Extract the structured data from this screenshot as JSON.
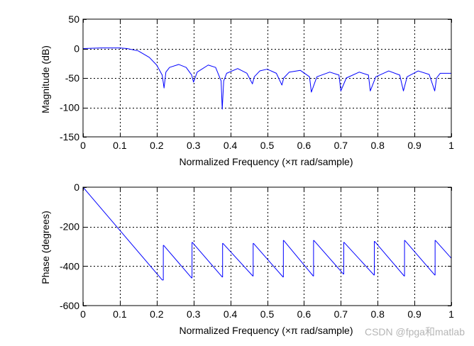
{
  "watermark": "CSDN @fpga和matlab",
  "colors": {
    "line": "#0000ff",
    "axis": "#000000",
    "grid": "#000000",
    "background": "#ffffff",
    "watermark": "#b5b5b5"
  },
  "chart_data": [
    {
      "type": "line",
      "title": "",
      "xlabel_prefix": "Normalized Frequency  (",
      "xlabel_symbol": "×π",
      "xlabel_suffix": " rad/sample)",
      "ylabel": "Magnitude (dB)",
      "xlim": [
        0,
        1
      ],
      "ylim": [
        -150,
        50
      ],
      "xticks": [
        0,
        0.1,
        0.2,
        0.3,
        0.4,
        0.5,
        0.6,
        0.7,
        0.8,
        0.9,
        1
      ],
      "xtick_labels": [
        "0",
        "0.1",
        "0.2",
        "0.3",
        "0.4",
        "0.5",
        "0.6",
        "0.7",
        "0.8",
        "0.9",
        "1"
      ],
      "yticks": [
        50,
        0,
        -50,
        -100,
        -150
      ],
      "ytick_labels": [
        "50",
        "0",
        "-50",
        "-100",
        "-150"
      ],
      "grid": true,
      "series": [
        {
          "name": "magnitude",
          "x": [
            0,
            0.05,
            0.1,
            0.12,
            0.15,
            0.18,
            0.2,
            0.215,
            0.22,
            0.225,
            0.235,
            0.26,
            0.28,
            0.295,
            0.3,
            0.31,
            0.34,
            0.36,
            0.375,
            0.378,
            0.382,
            0.39,
            0.42,
            0.445,
            0.46,
            0.465,
            0.48,
            0.5,
            0.525,
            0.54,
            0.545,
            0.56,
            0.59,
            0.615,
            0.62,
            0.635,
            0.67,
            0.695,
            0.7,
            0.715,
            0.75,
            0.775,
            0.78,
            0.795,
            0.83,
            0.86,
            0.87,
            0.88,
            0.91,
            0.94,
            0.955,
            0.96,
            0.97,
            1
          ],
          "y": [
            0,
            1,
            1,
            0,
            -4,
            -15,
            -28,
            -45,
            -67,
            -40,
            -32,
            -27,
            -32,
            -45,
            -57,
            -40,
            -28,
            -32,
            -55,
            -103,
            -55,
            -42,
            -34,
            -42,
            -60,
            -48,
            -38,
            -35,
            -42,
            -62,
            -50,
            -40,
            -37,
            -48,
            -74,
            -48,
            -40,
            -45,
            -72,
            -50,
            -40,
            -45,
            -72,
            -48,
            -38,
            -45,
            -72,
            -48,
            -38,
            -44,
            -72,
            -50,
            -42,
            -42
          ]
        }
      ]
    },
    {
      "type": "line",
      "title": "",
      "xlabel_prefix": "Normalized Frequency  (",
      "xlabel_symbol": "×π",
      "xlabel_suffix": " rad/sample)",
      "ylabel": "Phase (degrees)",
      "xlim": [
        0,
        1
      ],
      "ylim": [
        -600,
        0
      ],
      "xticks": [
        0,
        0.1,
        0.2,
        0.3,
        0.4,
        0.5,
        0.6,
        0.7,
        0.8,
        0.9,
        1
      ],
      "xtick_labels": [
        "0",
        "0.1",
        "0.2",
        "0.3",
        "0.4",
        "0.5",
        "0.6",
        "0.7",
        "0.8",
        "0.9",
        "1"
      ],
      "yticks": [
        0,
        -200,
        -400,
        -600
      ],
      "ytick_labels": [
        "0",
        "-200",
        "-400",
        "-600"
      ],
      "grid": true,
      "series": [
        {
          "name": "phase",
          "x": [
            0,
            0.215,
            0.218,
            0.218,
            0.219,
            0.295,
            0.296,
            0.296,
            0.297,
            0.378,
            0.379,
            0.379,
            0.38,
            0.461,
            0.462,
            0.462,
            0.463,
            0.543,
            0.544,
            0.544,
            0.545,
            0.625,
            0.626,
            0.626,
            0.627,
            0.707,
            0.708,
            0.708,
            0.709,
            0.79,
            0.791,
            0.791,
            0.792,
            0.872,
            0.873,
            0.873,
            0.874,
            0.955,
            0.956,
            0.956,
            0.957,
            1
          ],
          "y": [
            0,
            -470,
            -470,
            -295,
            -295,
            -460,
            -460,
            -280,
            -280,
            -455,
            -455,
            -285,
            -285,
            -450,
            -450,
            -285,
            -285,
            -455,
            -455,
            -270,
            -270,
            -450,
            -450,
            -270,
            -270,
            -440,
            -440,
            -280,
            -280,
            -445,
            -445,
            -275,
            -275,
            -450,
            -450,
            -270,
            -270,
            -445,
            -445,
            -270,
            -270,
            -360
          ]
        }
      ]
    }
  ]
}
